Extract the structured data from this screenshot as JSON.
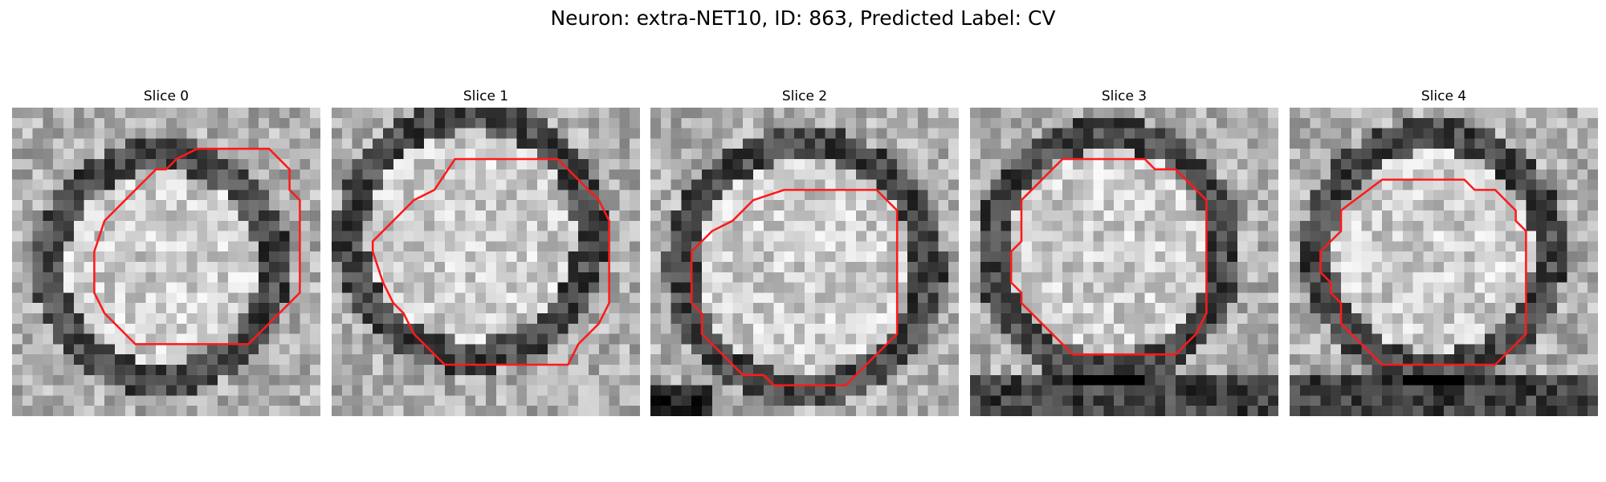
{
  "figure": {
    "title": "Neuron: extra-NET10, ID: 863, Predicted Label: CV"
  },
  "colors": {
    "contour": "#ff1a1a",
    "background": "#ffffff"
  },
  "panels": [
    {
      "title": "Slice 0"
    },
    {
      "title": "Slice 1"
    },
    {
      "title": "Slice 2"
    },
    {
      "title": "Slice 3"
    },
    {
      "title": "Slice 4"
    }
  ]
}
